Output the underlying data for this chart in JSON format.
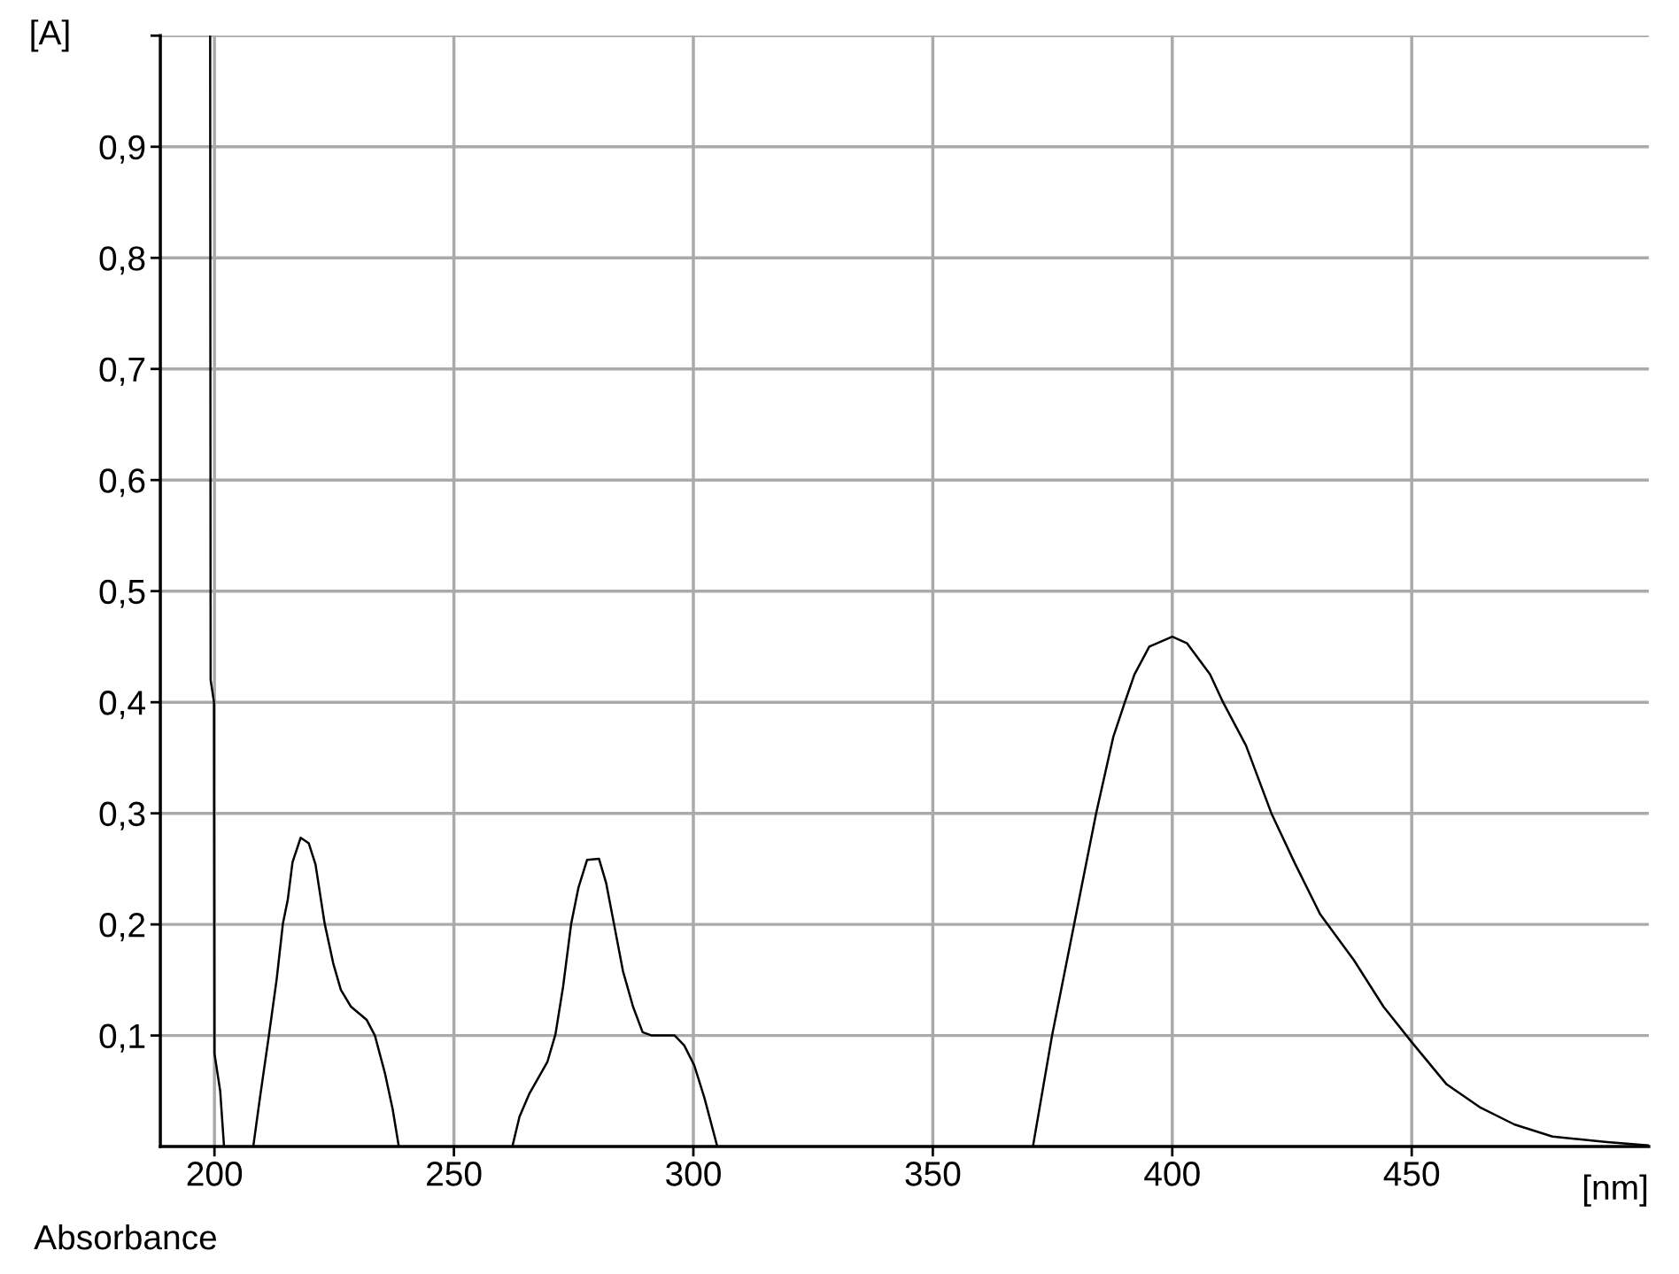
{
  "chart_data": {
    "type": "line",
    "xlabel": "[nm]",
    "ylabel": "[A]",
    "annotations": [
      "Absorbance"
    ],
    "xlim": [
      188.7,
      499.5
    ],
    "ylim": [
      0,
      1.0
    ],
    "xticks": [
      200,
      250,
      300,
      350,
      400,
      450
    ],
    "yticks": [
      {
        "value": 0.1,
        "label": "0,1"
      },
      {
        "value": 0.2,
        "label": "0,2"
      },
      {
        "value": 0.3,
        "label": "0,3"
      },
      {
        "value": 0.4,
        "label": "0,4"
      },
      {
        "value": 0.5,
        "label": "0,5"
      },
      {
        "value": 0.6,
        "label": "0,6"
      },
      {
        "value": 0.7,
        "label": "0,7"
      },
      {
        "value": 0.8,
        "label": "0,8"
      },
      {
        "value": 0.9,
        "label": "0,9"
      },
      {
        "value": 1.0,
        "label": null
      }
    ],
    "grid": true,
    "marker": "none",
    "line_style": "solid",
    "x": [
      199.1,
      199.2,
      199.9,
      200.0,
      201.2,
      202.0,
      202.1,
      208.1,
      209.5,
      211.4,
      213.0,
      214.3,
      215.3,
      216.3,
      218.0,
      219.7,
      221.1,
      223.0,
      224.8,
      226.4,
      228.5,
      231.8,
      233.5,
      235.6,
      237.2,
      238.5,
      240.0,
      262.2,
      263.7,
      265.8,
      269.5,
      271.2,
      272.8,
      274.5,
      276.0,
      277.8,
      280.3,
      281.8,
      283.4,
      285.3,
      287.4,
      289.4,
      291.3,
      296.1,
      298.1,
      300.2,
      302.3,
      305.0,
      306.0,
      370.9,
      374.9,
      379.5,
      384.1,
      387.7,
      390.1,
      392.1,
      395.2,
      400.0,
      403.1,
      407.9,
      410.6,
      415.4,
      420.7,
      425.6,
      430.9,
      437.9,
      444.1,
      450.0,
      457.3,
      464.4,
      471.4,
      479.4,
      490.8,
      499.5
    ],
    "series": [
      {
        "color": "#000000",
        "values": [
          1.0,
          0.42,
          0.4,
          0.084,
          0.05,
          0,
          null,
          0,
          0.044,
          0.101,
          0.151,
          0.201,
          0.222,
          0.256,
          0.278,
          0.273,
          0.254,
          0.201,
          0.165,
          0.141,
          0.126,
          0.114,
          0.1,
          0.066,
          0.034,
          0,
          null,
          0,
          0.027,
          0.048,
          0.076,
          0.101,
          0.144,
          0.201,
          0.233,
          0.258,
          0.259,
          0.237,
          0.201,
          0.158,
          0.126,
          0.103,
          0.1,
          0.1,
          0.091,
          0.073,
          0.044,
          0,
          null,
          0,
          0.1,
          0.2,
          0.3,
          0.369,
          0.4,
          0.425,
          0.45,
          0.459,
          0.453,
          0.425,
          0.4,
          0.361,
          0.3,
          0.255,
          0.209,
          0.168,
          0.126,
          0.094,
          0.056,
          0.035,
          0.02,
          0.009,
          0.004,
          0.001
        ]
      }
    ]
  }
}
